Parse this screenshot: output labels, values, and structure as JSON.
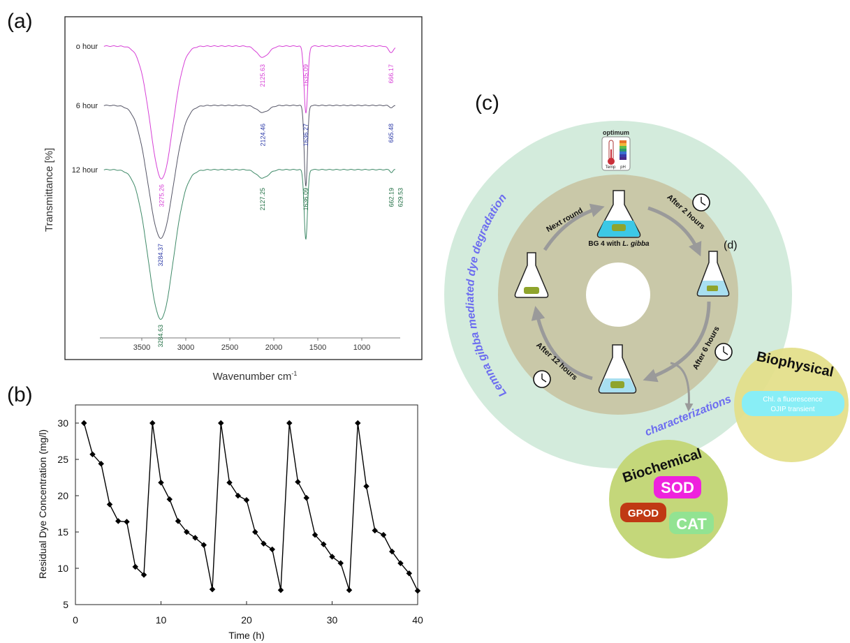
{
  "panels": {
    "a": "(a)",
    "b": "(b)",
    "c": "(c)",
    "d": "(d)"
  },
  "chart_data": [
    {
      "type": "line",
      "xlabel": "Wavenumber cm",
      "xlabel_superscript": "-1",
      "ylabel": "Transmittance [%]",
      "x_axis_reversed": true,
      "xlim": [
        4000,
        600
      ],
      "x_ticks": [
        3500,
        3000,
        2500,
        2000,
        1500,
        1000
      ],
      "grid": false,
      "series": [
        {
          "name": "o hour",
          "color": "#d63fd6",
          "peaks": [
            {
              "x": 3275.26,
              "label": "3275.26"
            },
            {
              "x": 2125.63,
              "label": "2125.63"
            },
            {
              "x": 1635.09,
              "label": "1635.09"
            },
            {
              "x": 666.17,
              "label": "666.17"
            }
          ]
        },
        {
          "name": "6 hour",
          "color": "#555566",
          "label_color": "#2c3aa8",
          "peaks": [
            {
              "x": 3284.37,
              "label": "3284.37"
            },
            {
              "x": 2124.46,
              "label": "2124.46"
            },
            {
              "x": 1636.27,
              "label": "1636.27"
            },
            {
              "x": 665.48,
              "label": "665.48"
            }
          ]
        },
        {
          "name": "12 hour",
          "color": "#3f8a68",
          "label_color": "#1f6e43",
          "peaks": [
            {
              "x": 3284.63,
              "label": "3284.63"
            },
            {
              "x": 2127.25,
              "label": "2127.25"
            },
            {
              "x": 1636.09,
              "label": "1636.09"
            },
            {
              "x": 662.19,
              "label": "662.19"
            },
            {
              "x": 629.53,
              "label": "629.53"
            }
          ]
        }
      ]
    },
    {
      "type": "line",
      "xlabel": "Time (h)",
      "ylabel": "Residual Dye Concentration (mg/l)",
      "xlim": [
        0,
        40
      ],
      "ylim": [
        5,
        32.5
      ],
      "x_ticks": [
        0,
        10,
        20,
        30,
        40
      ],
      "y_ticks": [
        5,
        10,
        15,
        20,
        25,
        30
      ],
      "grid": false,
      "series": [
        {
          "color": "#000000",
          "x": [
            1,
            2,
            3,
            4,
            5,
            6,
            7,
            8,
            9,
            10,
            11,
            12,
            13,
            14,
            15,
            16,
            17,
            18,
            19,
            20,
            21,
            22,
            23,
            24,
            25,
            26,
            27,
            28,
            29,
            30,
            31,
            32,
            33,
            34,
            35,
            36,
            37,
            38,
            39,
            40
          ],
          "y": [
            30,
            25.7,
            24.4,
            18.8,
            16.5,
            16.4,
            10.2,
            9.1,
            30,
            21.8,
            19.5,
            16.5,
            15,
            14.2,
            13.2,
            7.1,
            30,
            21.8,
            20,
            19.4,
            15,
            13.4,
            12.6,
            7,
            30,
            21.9,
            19.7,
            14.6,
            13.3,
            11.6,
            10.7,
            7,
            30,
            21.3,
            15.2,
            14.6,
            12.3,
            10.7,
            9.3,
            6.9
          ]
        }
      ]
    }
  ],
  "diagram": {
    "thermo_label": "optimum",
    "thermo_temp": "Temp",
    "thermo_ph": "pH",
    "arc_text": "Lemna gibba mediated dye degradation",
    "flask_top_label_prefix": "BG 4 with ",
    "flask_top_label_italic": "L. gibba",
    "step_next": "Next round",
    "step_2h": "After 2 hours",
    "step_6h": "After 6 hours",
    "step_12h": "After 12 hours",
    "characterizations": "characterizations",
    "biophysical": {
      "title": "Biophysical",
      "line1": "Chl. a fluorescence",
      "line2": "OJIP transient"
    },
    "biochemical": {
      "title": "Biochemical",
      "sod": "SOD",
      "gpod": "GPOD",
      "cat": "CAT"
    },
    "colors": {
      "outer_ring": "#d3ebdc",
      "inner_ring": "#c9c8a8",
      "arc_text": "#6c6cf0",
      "biophysical": "#e3de88",
      "biochemical": "#c4d77a",
      "sod": "#ee22dd",
      "gpod": "#c03914",
      "cat": "#92e392",
      "ojip": "#88eef6"
    }
  }
}
